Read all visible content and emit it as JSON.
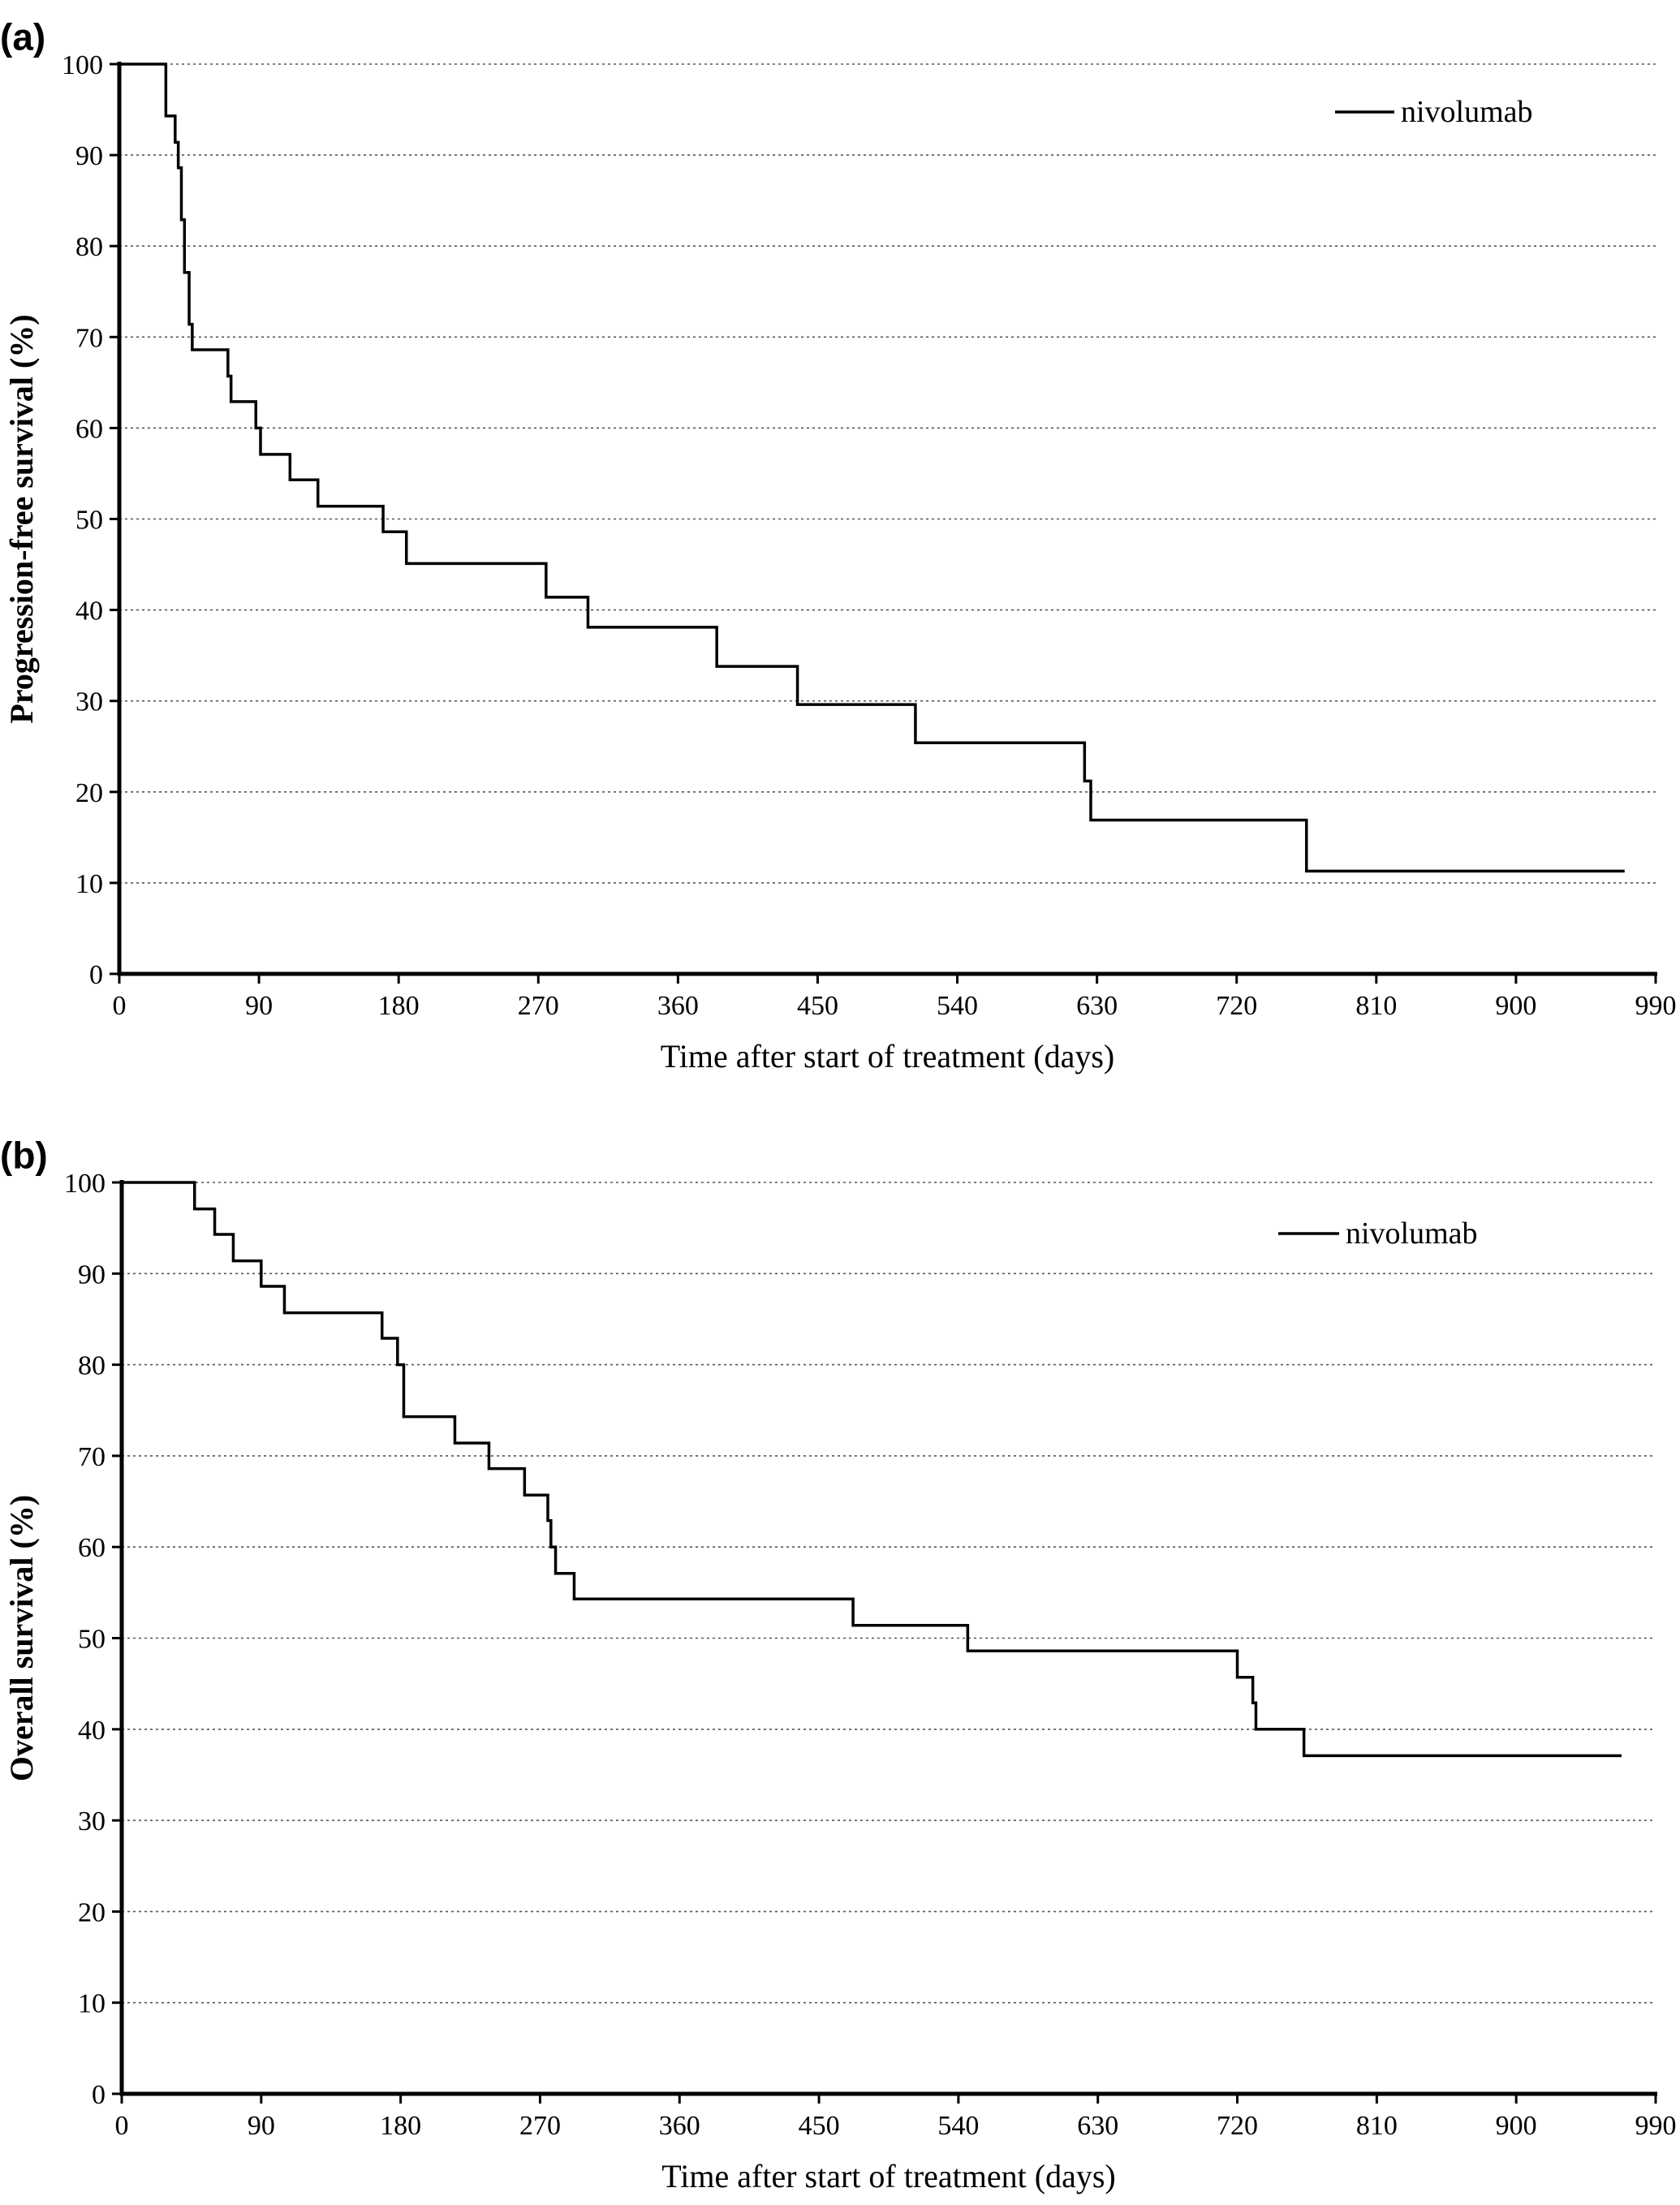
{
  "chart_data": [
    {
      "type": "line",
      "step": "post",
      "panel_label": "(a)",
      "title": "",
      "xlabel": "Time after start of treatment (days)",
      "ylabel": "Progression-free survival (%)",
      "xlim": [
        0,
        990
      ],
      "ylim": [
        0,
        100
      ],
      "xticks": [
        0,
        90,
        180,
        270,
        360,
        450,
        540,
        630,
        720,
        810,
        900,
        990
      ],
      "yticks": [
        0,
        10,
        20,
        30,
        40,
        50,
        60,
        70,
        80,
        90,
        100
      ],
      "grid": "horizontal-dotted",
      "legend": "top-right",
      "series": [
        {
          "name": "nivolumab",
          "x": [
            0,
            30,
            36,
            38,
            40,
            42,
            45,
            47,
            70,
            72,
            88,
            91,
            110,
            128,
            170,
            185,
            275,
            302,
            385,
            437,
            513,
            622,
            626,
            765,
            970
          ],
          "y": [
            100,
            94.3,
            91.4,
            88.6,
            82.9,
            77.1,
            71.4,
            68.6,
            65.7,
            62.9,
            60.0,
            57.1,
            54.3,
            51.4,
            48.6,
            45.1,
            41.4,
            38.1,
            33.8,
            29.6,
            25.4,
            21.2,
            16.9,
            11.3,
            11.3
          ]
        }
      ]
    },
    {
      "type": "line",
      "step": "post",
      "panel_label": "(b)",
      "title": "",
      "xlabel": "Time after start of treatment (days)",
      "ylabel": "Overall survival (%)",
      "xlim": [
        0,
        990
      ],
      "ylim": [
        0,
        100
      ],
      "xticks": [
        0,
        90,
        180,
        270,
        360,
        450,
        540,
        630,
        720,
        810,
        900,
        990
      ],
      "yticks": [
        0,
        10,
        20,
        30,
        40,
        50,
        60,
        70,
        80,
        90,
        100
      ],
      "grid": "horizontal-dotted",
      "legend": "top-right",
      "series": [
        {
          "name": "nivolumab",
          "x": [
            0,
            47,
            60,
            72,
            90,
            105,
            168,
            178,
            182,
            215,
            237,
            260,
            275,
            277,
            280,
            292,
            472,
            546,
            720,
            730,
            732,
            763,
            968
          ],
          "y": [
            100,
            97.1,
            94.3,
            91.4,
            88.6,
            85.7,
            82.9,
            80.0,
            74.3,
            71.4,
            68.6,
            65.7,
            62.9,
            60.0,
            57.1,
            54.3,
            51.4,
            48.6,
            45.7,
            42.9,
            40.0,
            37.1,
            37.1
          ]
        }
      ]
    }
  ]
}
